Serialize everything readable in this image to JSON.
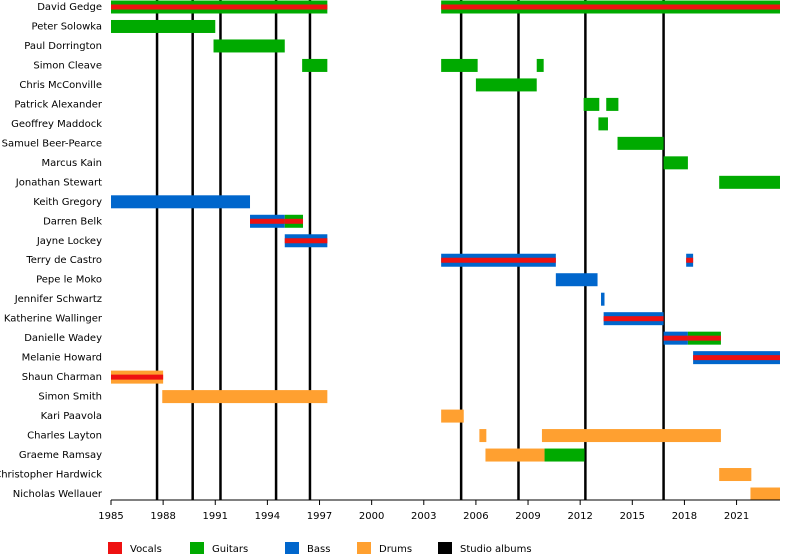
{
  "chart_data": {
    "type": "timeline",
    "xlim": [
      1985,
      2023.5
    ],
    "xticks": [
      1985,
      1988,
      1991,
      1994,
      1997,
      2000,
      2003,
      2006,
      2009,
      2012,
      2015,
      2018,
      2021
    ],
    "roles": [
      {
        "name": "Vocals",
        "color": "#ee1111"
      },
      {
        "name": "Guitars",
        "color": "#00aa00"
      },
      {
        "name": "Bass",
        "color": "#0066cc"
      },
      {
        "name": "Drums",
        "color": "#ffa030"
      }
    ],
    "albums": {
      "name": "Studio albums",
      "color": "#000000",
      "values": [
        1987.65,
        1989.7,
        1991.3,
        1994.5,
        1996.45,
        2005.15,
        2008.45,
        2012.3,
        2016.8
      ]
    },
    "members": [
      {
        "name": "David Gedge",
        "periods": [
          {
            "start": 1985,
            "end": 1997.45,
            "roles": [
              "Guitars",
              "Vocals"
            ]
          },
          {
            "start": 2004,
            "end": 2023.5,
            "roles": [
              "Guitars",
              "Vocals"
            ]
          }
        ]
      },
      {
        "name": "Peter Solowka",
        "periods": [
          {
            "start": 1985,
            "end": 1991,
            "roles": [
              "Guitars"
            ]
          }
        ]
      },
      {
        "name": "Paul Dorrington",
        "periods": [
          {
            "start": 1990.9,
            "end": 1995,
            "roles": [
              "Guitars"
            ]
          }
        ]
      },
      {
        "name": "Simon Cleave",
        "periods": [
          {
            "start": 1996,
            "end": 1997.45,
            "roles": [
              "Guitars"
            ]
          },
          {
            "start": 2004,
            "end": 2006.1,
            "roles": [
              "Guitars"
            ]
          },
          {
            "start": 2009.5,
            "end": 2009.9,
            "roles": [
              "Guitars"
            ]
          }
        ]
      },
      {
        "name": "Chris McConville",
        "periods": [
          {
            "start": 2006,
            "end": 2009.5,
            "roles": [
              "Guitars"
            ]
          }
        ]
      },
      {
        "name": "Patrick Alexander",
        "periods": [
          {
            "start": 2012.2,
            "end": 2013.1,
            "roles": [
              "Guitars"
            ]
          },
          {
            "start": 2013.5,
            "end": 2014.2,
            "roles": [
              "Guitars"
            ]
          }
        ]
      },
      {
        "name": "Geoffrey Maddock",
        "periods": [
          {
            "start": 2013.05,
            "end": 2013.6,
            "roles": [
              "Guitars"
            ]
          }
        ]
      },
      {
        "name": "Samuel Beer-Pearce",
        "periods": [
          {
            "start": 2014.15,
            "end": 2016.8,
            "roles": [
              "Guitars"
            ]
          }
        ]
      },
      {
        "name": "Marcus Kain",
        "periods": [
          {
            "start": 2016.8,
            "end": 2018.2,
            "roles": [
              "Guitars"
            ]
          }
        ]
      },
      {
        "name": "Jonathan Stewart",
        "periods": [
          {
            "start": 2020,
            "end": 2023.5,
            "roles": [
              "Guitars"
            ]
          }
        ]
      },
      {
        "name": "Keith Gregory",
        "periods": [
          {
            "start": 1985,
            "end": 1993,
            "roles": [
              "Bass"
            ]
          }
        ]
      },
      {
        "name": "Darren Belk",
        "periods": [
          {
            "start": 1993,
            "end": 1995,
            "roles": [
              "Bass",
              "Vocals"
            ]
          },
          {
            "start": 1995,
            "end": 1996.05,
            "roles": [
              "Guitars",
              "Vocals"
            ]
          }
        ]
      },
      {
        "name": "Jayne Lockey",
        "periods": [
          {
            "start": 1995,
            "end": 1997.45,
            "roles": [
              "Bass",
              "Vocals"
            ]
          }
        ]
      },
      {
        "name": "Terry de Castro",
        "periods": [
          {
            "start": 2004,
            "end": 2010.6,
            "roles": [
              "Bass",
              "Vocals"
            ]
          },
          {
            "start": 2018.1,
            "end": 2018.5,
            "roles": [
              "Bass",
              "Vocals"
            ]
          }
        ]
      },
      {
        "name": "Pepe le Moko",
        "periods": [
          {
            "start": 2010.6,
            "end": 2013,
            "roles": [
              "Bass"
            ]
          }
        ]
      },
      {
        "name": "Jennifer Schwartz",
        "periods": [
          {
            "start": 2013.2,
            "end": 2013.4,
            "roles": [
              "Bass"
            ]
          }
        ]
      },
      {
        "name": "Katherine Wallinger",
        "periods": [
          {
            "start": 2013.35,
            "end": 2016.8,
            "roles": [
              "Bass",
              "Vocals"
            ]
          }
        ]
      },
      {
        "name": "Danielle Wadey",
        "periods": [
          {
            "start": 2016.8,
            "end": 2018.2,
            "roles": [
              "Bass",
              "Vocals"
            ]
          },
          {
            "start": 2018.2,
            "end": 2020.1,
            "roles": [
              "Guitars",
              "Vocals"
            ]
          }
        ]
      },
      {
        "name": "Melanie Howard",
        "periods": [
          {
            "start": 2018.5,
            "end": 2023.5,
            "roles": [
              "Bass",
              "Vocals"
            ]
          }
        ]
      },
      {
        "name": "Shaun Charman",
        "periods": [
          {
            "start": 1985,
            "end": 1988,
            "roles": [
              "Drums",
              "Vocals"
            ]
          }
        ]
      },
      {
        "name": "Simon Smith",
        "periods": [
          {
            "start": 1987.95,
            "end": 1997.45,
            "roles": [
              "Drums"
            ]
          }
        ]
      },
      {
        "name": "Kari Paavola",
        "periods": [
          {
            "start": 2004,
            "end": 2005.3,
            "roles": [
              "Drums"
            ]
          }
        ]
      },
      {
        "name": "Charles Layton",
        "periods": [
          {
            "start": 2006.2,
            "end": 2006.6,
            "roles": [
              "Drums"
            ]
          },
          {
            "start": 2009.8,
            "end": 2020.1,
            "roles": [
              "Drums"
            ]
          }
        ]
      },
      {
        "name": "Graeme Ramsay",
        "periods": [
          {
            "start": 2006.55,
            "end": 2009.95,
            "roles": [
              "Drums"
            ]
          },
          {
            "start": 2009.95,
            "end": 2012.25,
            "roles": [
              "Guitars"
            ]
          }
        ]
      },
      {
        "name": "Christopher Hardwick",
        "periods": [
          {
            "start": 2020,
            "end": 2021.85,
            "roles": [
              "Drums"
            ]
          }
        ]
      },
      {
        "name": "Nicholas Wellauer",
        "periods": [
          {
            "start": 2021.8,
            "end": 2023.5,
            "roles": [
              "Drums"
            ]
          }
        ]
      }
    ]
  }
}
